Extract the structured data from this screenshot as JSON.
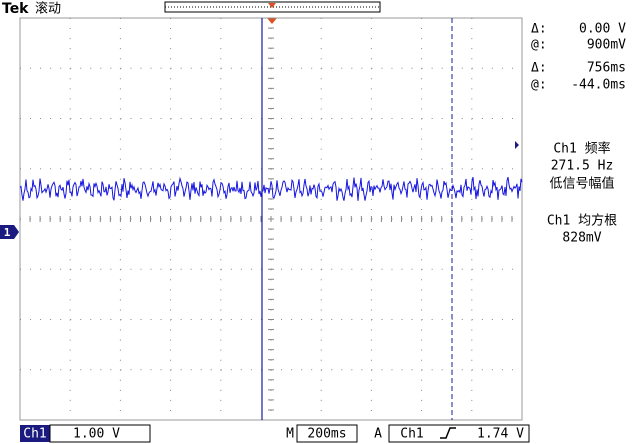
{
  "header": {
    "brand": "Tek",
    "mode": "滚动"
  },
  "cursor_readout": {
    "delta_v_label": "Δ:",
    "delta_v": "0.00 V",
    "at_v_label": "@:",
    "at_v": "900mV",
    "delta_t_label": "Δ:",
    "delta_t": "756ms",
    "at_t_label": "@:",
    "at_t": "-44.0ms"
  },
  "measurements": [
    {
      "label": "Ch1 频率",
      "value": "271.5 Hz",
      "note": "低信号幅值"
    },
    {
      "label": "Ch1 均方根",
      "value": "828mV"
    }
  ],
  "channel_marker": "1",
  "footer": {
    "channel": "Ch1",
    "scale": "1.00 V",
    "time_label": "M",
    "time_scale": "200ms",
    "trigger_label": "A",
    "trigger_channel": "Ch1",
    "trigger_level": "1.74 V"
  }
}
